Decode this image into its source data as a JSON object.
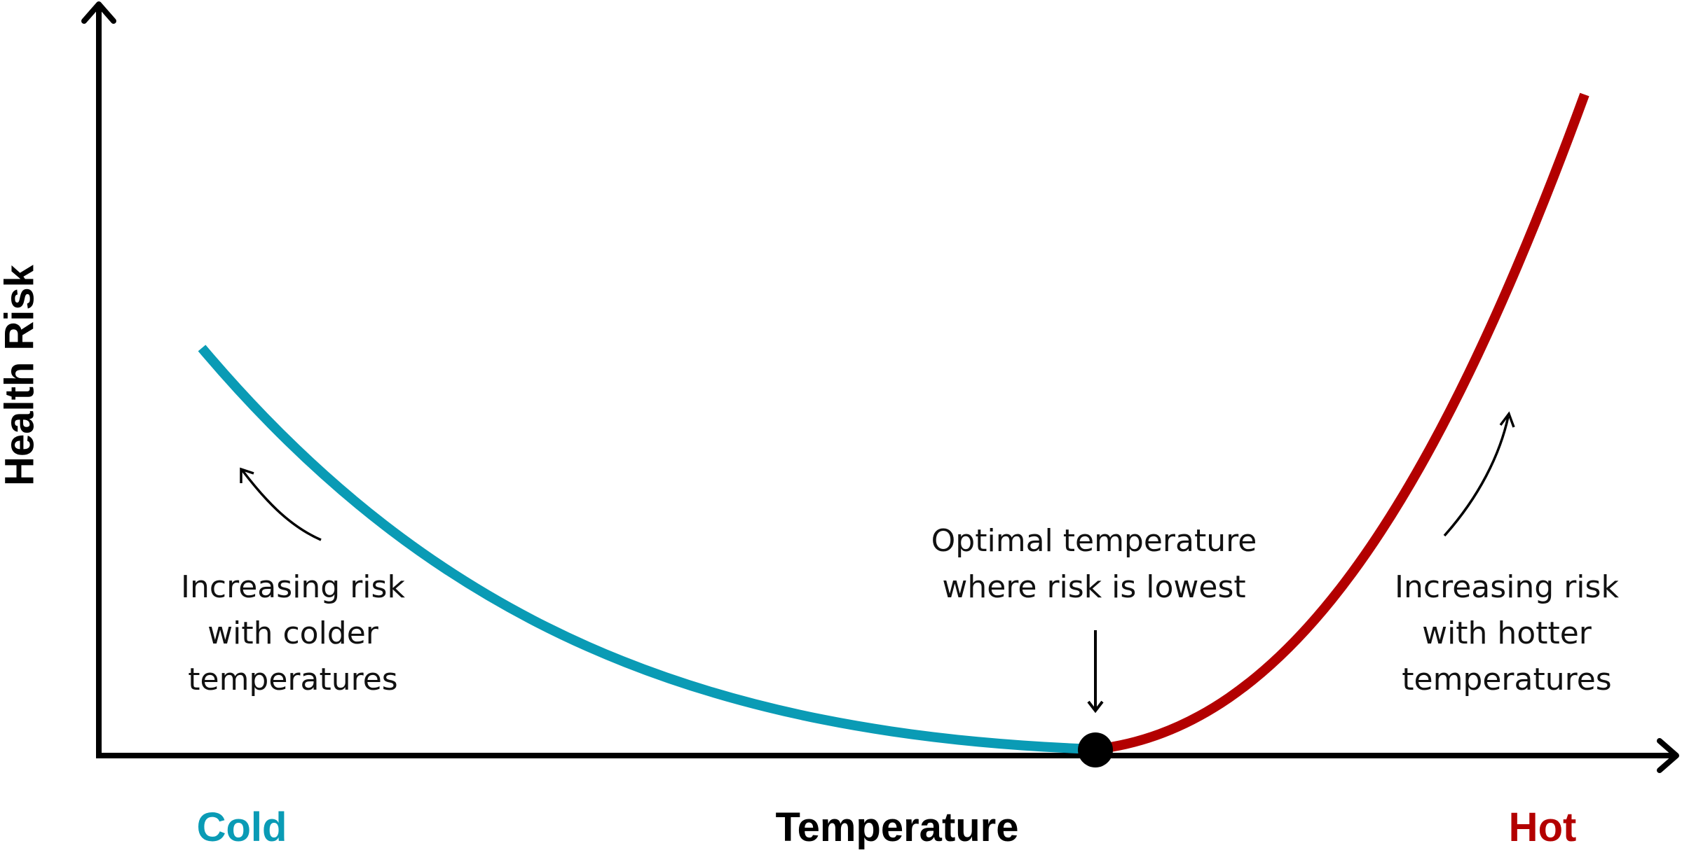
{
  "axes": {
    "y_label": "Health Risk",
    "x_label": "Temperature",
    "x_low_label": "Cold",
    "x_high_label": "Hot"
  },
  "annotations": {
    "cold": [
      "Increasing risk",
      "with colder",
      "temperatures"
    ],
    "optimal": [
      "Optimal temperature",
      "where risk is lowest"
    ],
    "hot": [
      "Increasing risk",
      "with hotter",
      "temperatures"
    ]
  },
  "colors": {
    "cold": "#0a9bb5",
    "hot": "#b30000",
    "axis": "#000000"
  }
}
